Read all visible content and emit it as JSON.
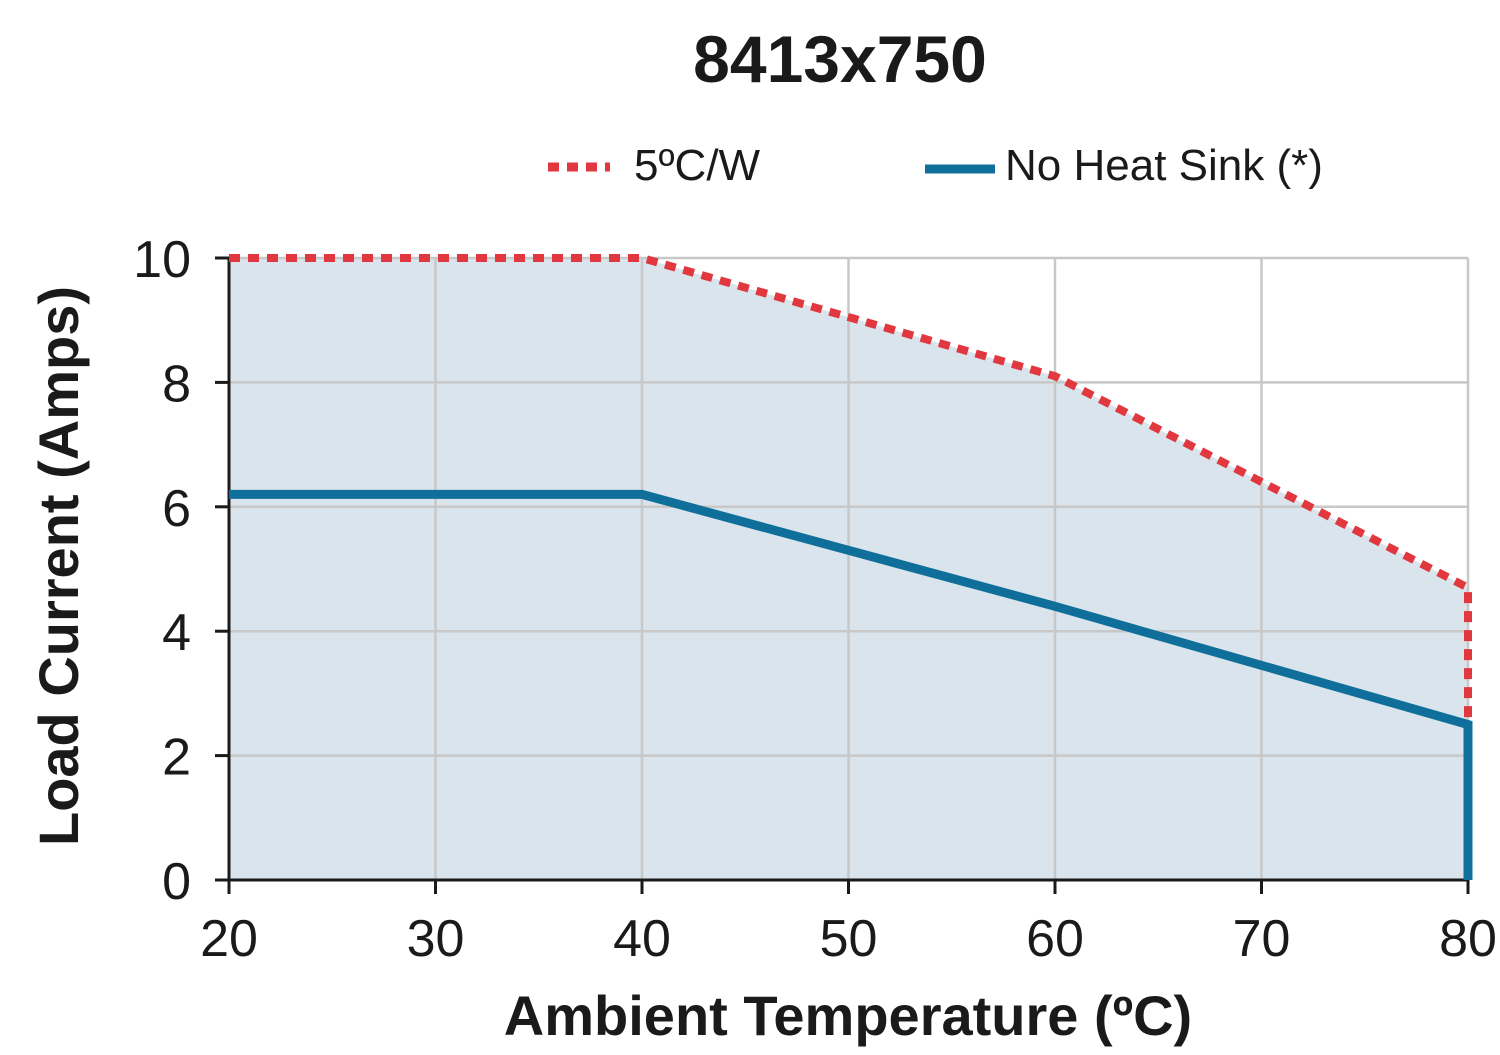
{
  "chart_data": {
    "type": "line",
    "title": "8413x750",
    "xlabel": "Ambient Temperature (ºC)",
    "ylabel": "Load Current (Amps)",
    "xlim": [
      20,
      80
    ],
    "ylim": [
      0,
      10
    ],
    "x_ticks": [
      "20",
      "30",
      "40",
      "50",
      "60",
      "70",
      "80"
    ],
    "y_ticks": [
      "0",
      "2",
      "4",
      "6",
      "8",
      "10"
    ],
    "grid": true,
    "legend_position": "top",
    "series": [
      {
        "name": "5ºC/W",
        "style": "dashed",
        "color": "#e0383e",
        "points": [
          [
            20,
            10
          ],
          [
            40,
            10
          ],
          [
            60,
            8.1
          ],
          [
            70,
            6.4
          ],
          [
            80,
            4.7
          ],
          [
            80,
            2.5
          ]
        ]
      },
      {
        "name": "No Heat Sink (*)",
        "style": "solid",
        "color": "#0f6f9a",
        "points": [
          [
            20,
            6.2
          ],
          [
            40,
            6.2
          ],
          [
            50,
            5.3
          ],
          [
            60,
            4.4
          ],
          [
            80,
            2.5
          ],
          [
            80,
            0
          ]
        ]
      }
    ],
    "fill_color": "#d9e4ec"
  }
}
